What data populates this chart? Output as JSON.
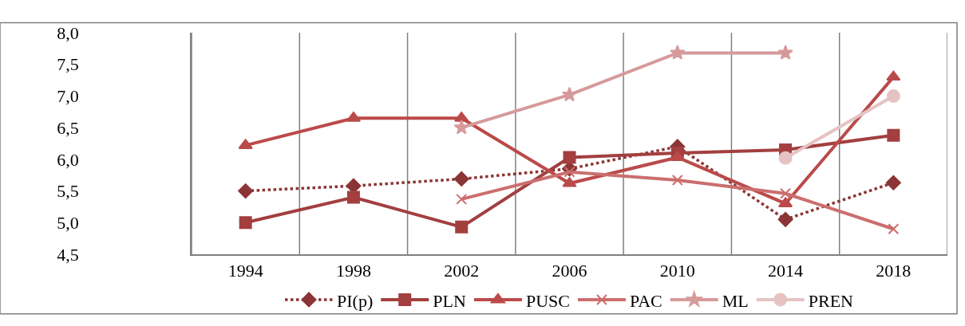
{
  "chart_data": {
    "type": "line",
    "categories": [
      "1994",
      "1998",
      "2002",
      "2006",
      "2010",
      "2014",
      "2018"
    ],
    "series": [
      {
        "name": "PI(p)",
        "color": "#8b3535",
        "marker": "diamond",
        "line_style": "dotted",
        "values": [
          5.5,
          5.58,
          5.69,
          5.85,
          6.2,
          5.05,
          5.63
        ]
      },
      {
        "name": "PLN",
        "color": "#a33f3f",
        "marker": "square",
        "line_style": "solid",
        "values": [
          5.0,
          5.4,
          4.93,
          6.03,
          6.1,
          6.15,
          6.38
        ]
      },
      {
        "name": "PUSC",
        "color": "#bb4a4a",
        "marker": "triangle",
        "line_style": "solid",
        "values": [
          6.22,
          6.65,
          6.65,
          5.62,
          6.03,
          5.3,
          7.3
        ]
      },
      {
        "name": "PAC",
        "color": "#cc6e6e",
        "marker": "cross",
        "line_style": "solid",
        "values": [
          null,
          null,
          5.37,
          5.8,
          5.67,
          5.46,
          4.9
        ]
      },
      {
        "name": "ML",
        "color": "#d69a9a",
        "marker": "star",
        "line_style": "solid",
        "values": [
          null,
          null,
          6.5,
          7.02,
          7.68,
          7.68,
          null
        ]
      },
      {
        "name": "PREN",
        "color": "#e6c3c3",
        "marker": "circle",
        "line_style": "solid",
        "values": [
          null,
          null,
          null,
          null,
          null,
          6.02,
          7.0
        ]
      }
    ],
    "ylim": [
      4.5,
      8.0
    ],
    "yticks": [
      {
        "value": 4.5,
        "label": "4,5"
      },
      {
        "value": 5.0,
        "label": "5,0"
      },
      {
        "value": 5.5,
        "label": "5,5"
      },
      {
        "value": 6.0,
        "label": "6,0"
      },
      {
        "value": 6.5,
        "label": "6,5"
      },
      {
        "value": 7.0,
        "label": "7,0"
      },
      {
        "value": 7.5,
        "label": "7,5"
      },
      {
        "value": 8.0,
        "label": "8,0"
      }
    ],
    "grid": "x",
    "legend": "bottom"
  }
}
